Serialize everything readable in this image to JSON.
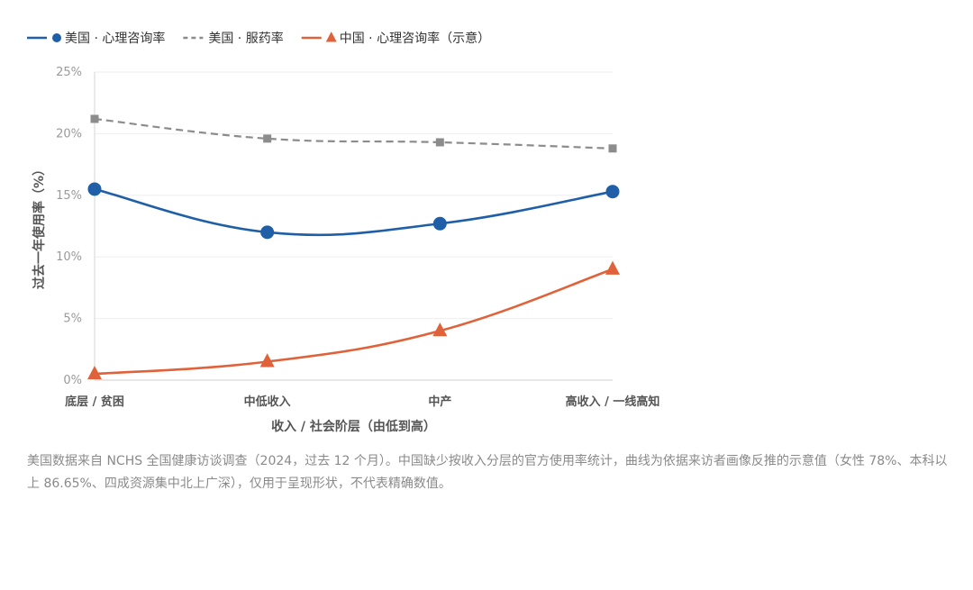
{
  "chart_data": {
    "type": "line",
    "categories": [
      "底层 / 贫困",
      "中低收入",
      "中产",
      "高收入 / 一线高知"
    ],
    "xlabel": "收入 / 社会阶层（由低到高）",
    "ylabel": "过去一年使用率（%）",
    "ylim": [
      0,
      25
    ],
    "yticks": [
      0,
      5,
      10,
      15,
      20,
      25
    ],
    "ytick_labels": [
      "0%",
      "5%",
      "10%",
      "15%",
      "20%",
      "25%"
    ],
    "grid": true,
    "legend_position": "top-left",
    "series": [
      {
        "name": "美国 · 心理咨询率",
        "values": [
          15.5,
          12.0,
          12.7,
          15.3
        ],
        "color": "#1f5fa8",
        "marker": "circle",
        "dash": "solid"
      },
      {
        "name": "美国 · 服药率",
        "values": [
          21.2,
          19.6,
          19.3,
          18.8
        ],
        "color": "#8c8c8c",
        "marker": "square",
        "dash": "dashed"
      },
      {
        "name": "中国 · 心理咨询率（示意）",
        "values": [
          0.5,
          1.5,
          4.0,
          9.0
        ],
        "color": "#e0623a",
        "marker": "triangle",
        "dash": "solid"
      }
    ]
  },
  "note": "美国数据来自 NCHS 全国健康访谈调查（2024，过去 12 个月）。中国缺少按收入分层的官方使用率统计，曲线为依据来访者画像反推的示意值（女性 78%、本科以上 86.65%、四成资源集中北上广深），仅用于呈现形状，不代表精确数值。"
}
